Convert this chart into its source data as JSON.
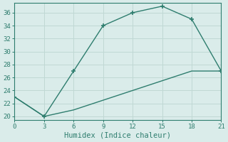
{
  "x_upper": [
    0,
    3,
    6,
    9,
    12,
    15,
    18,
    21
  ],
  "y_upper": [
    23,
    20,
    27,
    34,
    36,
    37,
    35,
    27
  ],
  "x_lower": [
    0,
    3,
    6,
    9,
    12,
    15,
    18,
    21
  ],
  "y_lower": [
    23,
    20,
    21,
    22.5,
    24,
    25.5,
    27,
    27
  ],
  "line_color": "#2e7d6e",
  "bg_color": "#daecea",
  "grid_color": "#c0d8d4",
  "xlabel": "Humidex (Indice chaleur)",
  "xlim": [
    0,
    21
  ],
  "ylim": [
    19.5,
    37.5
  ],
  "xticks": [
    0,
    3,
    6,
    9,
    12,
    15,
    18,
    21
  ],
  "yticks": [
    20,
    22,
    24,
    26,
    28,
    30,
    32,
    34,
    36
  ],
  "marker": "+",
  "marker_size": 5,
  "linewidth": 1.0,
  "tick_fontsize": 6.5,
  "xlabel_fontsize": 7.5
}
